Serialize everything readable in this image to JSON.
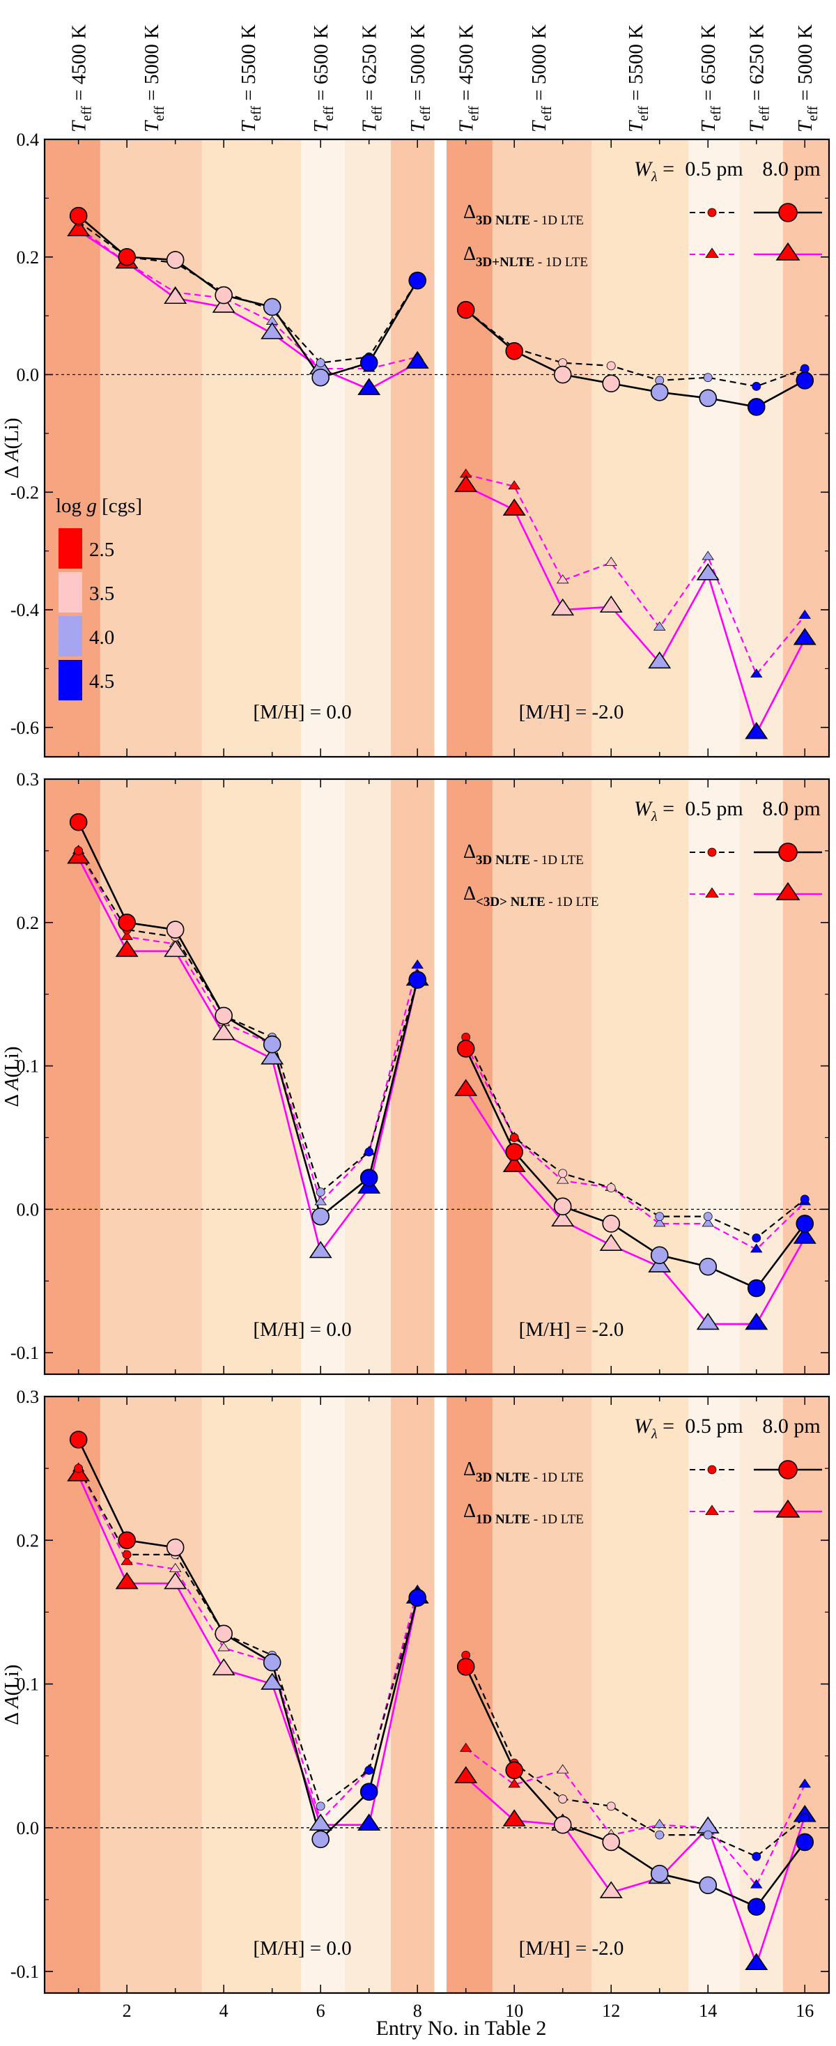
{
  "chart_data": {
    "type": "line",
    "xlabel": "Entry No. in Table 2",
    "x_ticks": [
      2,
      4,
      6,
      8,
      10,
      12,
      14,
      16
    ],
    "xlim": [
      0.3,
      16.5
    ],
    "teff_labels": [
      {
        "x": 1,
        "value": "= 4500 K"
      },
      {
        "x": 2.5,
        "value": "= 5000 K"
      },
      {
        "x": 4.5,
        "value": "= 5500 K"
      },
      {
        "x": 6,
        "value": "= 6500 K"
      },
      {
        "x": 7,
        "value": "= 6250 K"
      },
      {
        "x": 8,
        "value": "= 5000 K"
      },
      {
        "x": 9,
        "value": "= 4500 K"
      },
      {
        "x": 10.5,
        "value": "= 5000 K"
      },
      {
        "x": 12.5,
        "value": "= 5500 K"
      },
      {
        "x": 14,
        "value": "= 6500 K"
      },
      {
        "x": 15,
        "value": "= 6250 K"
      },
      {
        "x": 16,
        "value": "= 5000 K"
      }
    ],
    "teff_symbol": "T",
    "teff_subscript": "eff",
    "bands": [
      {
        "x0": 0.3,
        "x1": 1.45,
        "color": "#f6a580"
      },
      {
        "x0": 1.45,
        "x1": 3.55,
        "color": "#fad1b3"
      },
      {
        "x0": 3.55,
        "x1": 5.6,
        "color": "#fde4c6"
      },
      {
        "x0": 5.6,
        "x1": 6.5,
        "color": "#fdf3e8"
      },
      {
        "x0": 6.5,
        "x1": 7.45,
        "color": "#fdebd9"
      },
      {
        "x0": 7.45,
        "x1": 8.35,
        "color": "#fac8a9"
      },
      {
        "x0": 8.6,
        "x1": 9.55,
        "color": "#f6a580"
      },
      {
        "x0": 9.55,
        "x1": 11.6,
        "color": "#fad1b3"
      },
      {
        "x0": 11.6,
        "x1": 13.6,
        "color": "#fde4c6"
      },
      {
        "x0": 13.6,
        "x1": 14.65,
        "color": "#fdf3e8"
      },
      {
        "x0": 14.65,
        "x1": 15.55,
        "color": "#fdebd9"
      },
      {
        "x0": 15.55,
        "x1": 16.5,
        "color": "#fac8a9"
      }
    ],
    "gap": [
      8.35,
      8.6
    ],
    "logg_colors": {
      "2.5": "#ff0000",
      "3.5": "#ffc8c8",
      "4.0": "#a6a6f0",
      "4.5": "#0000ff"
    },
    "logg_by_entry": [
      2.5,
      2.5,
      3.5,
      3.5,
      4.0,
      4.0,
      4.5,
      4.5,
      2.5,
      2.5,
      3.5,
      3.5,
      4.0,
      4.0,
      4.5,
      4.5
    ],
    "legend_common": {
      "w_symbol": "W",
      "w_subscript": "λ",
      "w_equals": "=",
      "weak": "0.5 pm",
      "strong": "8.0 pm"
    },
    "series_lte_label": "- 1D LTE",
    "logg_legend": {
      "title": "log g [cgs]",
      "values": [
        "2.5",
        "3.5",
        "4.0",
        "4.5"
      ]
    },
    "panels": [
      {
        "ylabel": "Δ A(Li)",
        "ylim": [
          -0.65,
          0.4
        ],
        "yticks": [
          -0.6,
          -0.4,
          -0.2,
          0.0,
          0.2,
          0.4
        ],
        "metallicity": [
          "[M/H] = 0.0",
          "[M/H] = -2.0"
        ],
        "legend_labels": [
          "3D NLTE",
          "3D+NLTE"
        ],
        "ref_weak": [
          0.26,
          0.2,
          0.19,
          0.14,
          0.11,
          0.02,
          0.03,
          0.16,
          0.11,
          0.045,
          0.02,
          0.015,
          -0.01,
          -0.005,
          -0.02,
          0.01
        ],
        "ref_strong": [
          0.27,
          0.2,
          0.195,
          0.135,
          0.115,
          -0.005,
          0.02,
          0.16,
          0.11,
          0.04,
          0.0,
          -0.015,
          -0.03,
          -0.04,
          -0.055,
          -0.01
        ],
        "cmp_weak": [
          0.25,
          0.19,
          0.14,
          0.13,
          0.09,
          0.01,
          0.01,
          0.03,
          -0.17,
          -0.19,
          -0.35,
          -0.32,
          -0.43,
          -0.31,
          -0.51,
          -0.41
        ],
        "cmp_strong": [
          0.245,
          0.19,
          0.13,
          0.115,
          0.07,
          0.01,
          -0.025,
          0.02,
          -0.19,
          -0.23,
          -0.4,
          -0.395,
          -0.49,
          -0.34,
          -0.61,
          -0.45
        ]
      },
      {
        "ylabel": "Δ A(Li)",
        "ylim": [
          -0.115,
          0.3
        ],
        "yticks": [
          -0.1,
          0.0,
          0.1,
          0.2,
          0.3
        ],
        "metallicity": [
          "[M/H] = 0.0",
          "[M/H] = -2.0"
        ],
        "legend_labels": [
          "3D NLTE",
          "<3D> NLTE"
        ],
        "ref_weak": [
          0.25,
          0.195,
          0.19,
          0.135,
          0.12,
          0.012,
          0.04,
          0.16,
          0.12,
          0.05,
          0.025,
          0.015,
          -0.005,
          -0.005,
          -0.02,
          0.007
        ],
        "ref_strong": [
          0.27,
          0.2,
          0.195,
          0.135,
          0.115,
          -0.005,
          0.022,
          0.16,
          0.112,
          0.04,
          0.002,
          -0.01,
          -0.032,
          -0.04,
          -0.055,
          -0.01
        ],
        "cmp_weak": [
          0.25,
          0.19,
          0.185,
          0.13,
          0.115,
          0.005,
          0.04,
          0.17,
          0.115,
          0.05,
          0.02,
          0.015,
          -0.01,
          -0.01,
          -0.028,
          0.005
        ],
        "cmp_strong": [
          0.245,
          0.18,
          0.18,
          0.122,
          0.105,
          -0.03,
          0.015,
          0.16,
          0.083,
          0.03,
          -0.008,
          -0.025,
          -0.04,
          -0.08,
          -0.08,
          -0.02
        ]
      },
      {
        "ylabel": "Δ A(Li)",
        "ylim": [
          -0.115,
          0.3
        ],
        "yticks": [
          -0.1,
          0.0,
          0.1,
          0.2,
          0.3
        ],
        "metallicity": [
          "[M/H] = 0.0",
          "[M/H] = -2.0"
        ],
        "legend_labels": [
          "3D NLTE",
          "1D NLTE"
        ],
        "ref_weak": [
          0.25,
          0.19,
          0.19,
          0.135,
          0.12,
          0.015,
          0.04,
          0.16,
          0.12,
          0.045,
          0.02,
          0.015,
          -0.005,
          -0.005,
          -0.02,
          0.007
        ],
        "ref_strong": [
          0.27,
          0.2,
          0.195,
          0.135,
          0.115,
          -0.008,
          0.025,
          0.16,
          0.112,
          0.04,
          0.002,
          -0.01,
          -0.032,
          -0.04,
          -0.055,
          -0.01
        ],
        "cmp_weak": [
          0.25,
          0.185,
          0.18,
          0.125,
          0.115,
          0.005,
          0.04,
          0.165,
          0.055,
          0.03,
          0.04,
          -0.005,
          0.002,
          0.0,
          -0.04,
          0.03
        ],
        "cmp_strong": [
          0.245,
          0.17,
          0.17,
          0.11,
          0.1,
          0.002,
          0.002,
          0.16,
          0.035,
          0.005,
          0.002,
          -0.045,
          -0.035,
          0.0,
          -0.095,
          0.008
        ]
      }
    ]
  }
}
